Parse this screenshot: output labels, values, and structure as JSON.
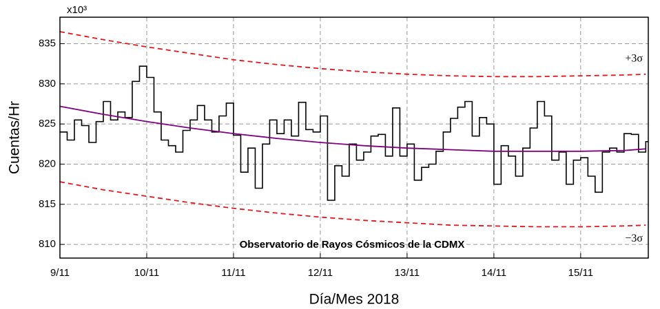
{
  "chart_data": {
    "type": "line",
    "xlabel": "Día/Mes 2018",
    "ylabel": "Cuentas/Hr",
    "y_multiplier": "x10³",
    "annotations": [
      "+3σ",
      "−3σ",
      "Observatorio de Rayos Cósmicos de la CDMX"
    ],
    "xlim": [
      0,
      162.7
    ],
    "xticks": [
      {
        "value": 0,
        "label": "9/11"
      },
      {
        "value": 24,
        "label": "10/11"
      },
      {
        "value": 48,
        "label": "11/11"
      },
      {
        "value": 72,
        "label": "12/11"
      },
      {
        "value": 96,
        "label": "13/11"
      },
      {
        "value": 120,
        "label": "14/11"
      },
      {
        "value": 144,
        "label": "15/11"
      }
    ],
    "ylim": [
      808.3,
      838.3
    ],
    "yticks": [
      810,
      815,
      820,
      825,
      830,
      835
    ],
    "grid": true,
    "series": [
      {
        "color": "#000000",
        "style": "step",
        "x": [
          0,
          2,
          4,
          6,
          8,
          10,
          12,
          14,
          16,
          18,
          20,
          22,
          24,
          26,
          28,
          30,
          32,
          34,
          36,
          38,
          40,
          42,
          44,
          46,
          48,
          50,
          52,
          54,
          56,
          58,
          60,
          62,
          64,
          66,
          68,
          70,
          72,
          74,
          76,
          78,
          80,
          82,
          84,
          86,
          88,
          90,
          92,
          94,
          96,
          98,
          100,
          102,
          104,
          106,
          108,
          110,
          112,
          114,
          116,
          118,
          120,
          122,
          124,
          126,
          128,
          130,
          132,
          134,
          136,
          138,
          140,
          142,
          144,
          146,
          148,
          150,
          152,
          154,
          156,
          158,
          160,
          162
        ],
        "values": [
          824,
          823,
          825.5,
          824.8,
          822.7,
          825.3,
          827.8,
          825.5,
          826.5,
          825.8,
          830.3,
          832.2,
          830.8,
          826.5,
          823,
          822.3,
          821.5,
          824.2,
          825.5,
          827.3,
          825.5,
          824,
          826,
          827.6,
          823.6,
          819,
          822,
          817,
          822.5,
          825.5,
          823.8,
          825.5,
          823.5,
          827.7,
          824.3,
          824,
          826,
          815.5,
          819.8,
          818.5,
          822.5,
          820.5,
          821.5,
          823.5,
          823.7,
          821,
          827,
          821,
          822.5,
          818,
          819.6,
          820,
          821.6,
          824,
          825.7,
          827.1,
          827.8,
          823.5,
          825.8,
          825,
          817.5,
          822.3,
          821,
          818.5,
          822,
          824.5,
          827.8,
          826,
          820.5,
          821.5,
          817.5,
          820.5,
          820.8,
          818.5,
          816.5,
          821.5,
          822,
          821.5,
          823.8,
          823.7,
          821.5,
          822.8
        ]
      },
      {
        "color": "#800080",
        "style": "solid",
        "x": [
          0,
          12,
          24,
          36,
          48,
          60,
          72,
          84,
          96,
          108,
          120,
          132,
          144,
          156,
          162
        ],
        "values": [
          827.2,
          826.2,
          825.3,
          824.5,
          823.8,
          823.2,
          822.7,
          822.3,
          822.0,
          821.8,
          821.6,
          821.6,
          821.6,
          821.7,
          821.9
        ]
      },
      {
        "color": "#e8141a",
        "style": "dashed",
        "x": [
          0,
          12,
          24,
          36,
          48,
          60,
          72,
          84,
          96,
          108,
          120,
          132,
          144,
          156,
          162
        ],
        "values": [
          836.5,
          835.5,
          834.6,
          833.8,
          833.0,
          832.4,
          831.9,
          831.5,
          831.2,
          831.0,
          830.9,
          830.9,
          831.0,
          831.1,
          831.2
        ]
      },
      {
        "color": "#e8141a",
        "style": "dashed",
        "x": [
          0,
          12,
          24,
          36,
          48,
          60,
          72,
          84,
          96,
          108,
          120,
          132,
          144,
          156,
          162
        ],
        "values": [
          817.8,
          816.8,
          816.0,
          815.2,
          814.5,
          813.9,
          813.4,
          813.0,
          812.7,
          812.4,
          812.3,
          812.2,
          812.2,
          812.3,
          812.4
        ]
      }
    ]
  }
}
